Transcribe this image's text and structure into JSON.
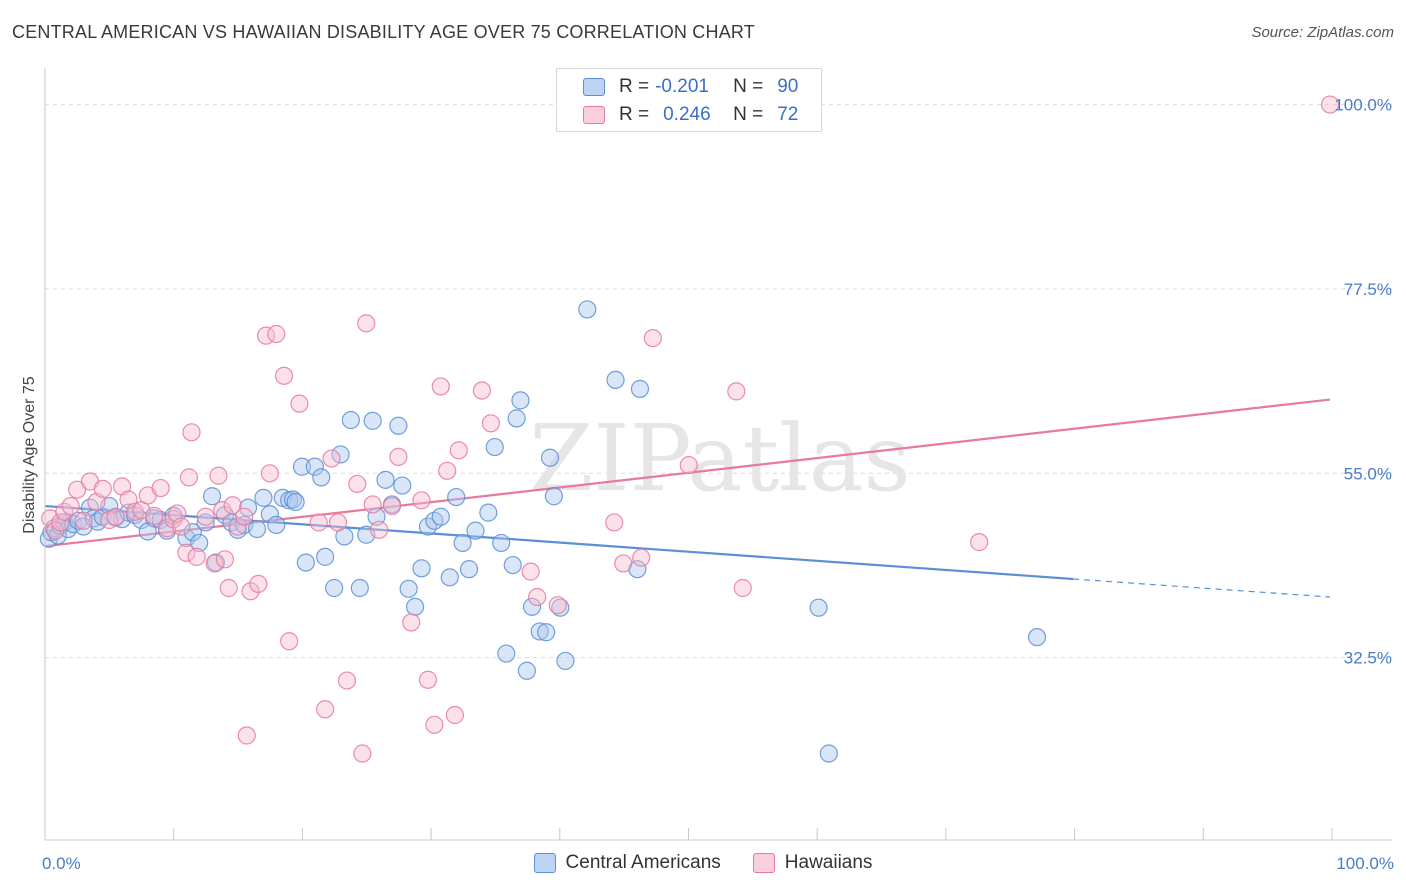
{
  "title": "CENTRAL AMERICAN VS HAWAIIAN DISABILITY AGE OVER 75 CORRELATION CHART",
  "source": "Source: ZipAtlas.com",
  "watermark": "ZIPatlas",
  "legend": {
    "rows": [
      {
        "r_label": "R =",
        "r_value": "-0.201",
        "n_label": "N =",
        "n_value": "90",
        "color": "#5b8fd6"
      },
      {
        "r_label": "R =",
        "r_value": "0.246",
        "n_label": "N =",
        "n_value": "72",
        "color": "#e879a0"
      }
    ]
  },
  "chart_data": {
    "type": "scatter",
    "title": "CENTRAL AMERICAN VS HAWAIIAN DISABILITY AGE OVER 75 CORRELATION CHART",
    "xlabel": "",
    "ylabel": "Disability Age Over 75",
    "xlim": [
      0,
      100
    ],
    "ylim": [
      10,
      103
    ],
    "x_tick_labels": [
      "0.0%",
      "100.0%"
    ],
    "y_ticks": [
      32.5,
      55.0,
      77.5,
      100.0
    ],
    "y_tick_labels": [
      "32.5%",
      "55.0%",
      "77.5%",
      "100.0%"
    ],
    "grid": true,
    "legend_position": "bottom",
    "series": [
      {
        "name": "Central Americans",
        "color": "#5b8fd6",
        "fill": "#aac8ee",
        "trend": {
          "x": [
            0,
            80
          ],
          "y": [
            51.0,
            42.1
          ]
        },
        "trend_dashed": {
          "x": [
            80,
            100
          ],
          "y": [
            42.1,
            39.9
          ]
        },
        "points": [
          [
            0.3,
            47.0
          ],
          [
            0.5,
            47.8
          ],
          [
            0.7,
            48.3
          ],
          [
            1.0,
            47.4
          ],
          [
            1.2,
            48.6
          ],
          [
            1.5,
            49.0
          ],
          [
            1.8,
            48.2
          ],
          [
            2.2,
            48.8
          ],
          [
            2.6,
            49.2
          ],
          [
            3.0,
            48.5
          ],
          [
            3.5,
            50.8
          ],
          [
            3.8,
            49.5
          ],
          [
            4.1,
            49.1
          ],
          [
            4.5,
            49.7
          ],
          [
            5.0,
            51.0
          ],
          [
            5.5,
            49.6
          ],
          [
            6.0,
            49.4
          ],
          [
            6.5,
            50.2
          ],
          [
            7.0,
            49.9
          ],
          [
            7.5,
            49.3
          ],
          [
            8.0,
            47.9
          ],
          [
            8.5,
            49.5
          ],
          [
            9.0,
            49.3
          ],
          [
            9.5,
            48.0
          ],
          [
            10.0,
            49.8
          ],
          [
            11.0,
            47.1
          ],
          [
            11.5,
            47.8
          ],
          [
            12.0,
            46.5
          ],
          [
            12.5,
            49.0
          ],
          [
            13.0,
            52.2
          ],
          [
            13.3,
            44.1
          ],
          [
            14.0,
            49.9
          ],
          [
            14.5,
            49.0
          ],
          [
            15.0,
            48.1
          ],
          [
            15.5,
            48.7
          ],
          [
            15.8,
            50.8
          ],
          [
            16.5,
            48.2
          ],
          [
            17.0,
            52.0
          ],
          [
            17.5,
            50.0
          ],
          [
            18.0,
            48.7
          ],
          [
            18.5,
            52.0
          ],
          [
            19.0,
            51.7
          ],
          [
            19.3,
            51.8
          ],
          [
            19.5,
            51.5
          ],
          [
            20.0,
            55.8
          ],
          [
            20.3,
            44.1
          ],
          [
            21.0,
            55.8
          ],
          [
            21.5,
            54.5
          ],
          [
            21.8,
            44.8
          ],
          [
            22.5,
            41.0
          ],
          [
            23.0,
            57.3
          ],
          [
            23.3,
            47.3
          ],
          [
            23.8,
            61.5
          ],
          [
            24.5,
            41.0
          ],
          [
            25.0,
            47.5
          ],
          [
            25.5,
            61.4
          ],
          [
            25.8,
            49.7
          ],
          [
            26.5,
            54.2
          ],
          [
            27.0,
            51.2
          ],
          [
            27.5,
            60.8
          ],
          [
            27.8,
            53.5
          ],
          [
            28.3,
            40.9
          ],
          [
            28.8,
            38.7
          ],
          [
            29.3,
            43.4
          ],
          [
            29.8,
            48.5
          ],
          [
            30.3,
            49.2
          ],
          [
            30.8,
            49.7
          ],
          [
            31.5,
            42.3
          ],
          [
            32.0,
            52.1
          ],
          [
            32.5,
            46.5
          ],
          [
            33.0,
            43.3
          ],
          [
            33.5,
            48.0
          ],
          [
            34.5,
            50.2
          ],
          [
            35.0,
            58.2
          ],
          [
            35.5,
            46.5
          ],
          [
            35.9,
            33.0
          ],
          [
            36.4,
            43.8
          ],
          [
            36.7,
            61.7
          ],
          [
            37.0,
            63.9
          ],
          [
            37.5,
            30.9
          ],
          [
            37.9,
            38.7
          ],
          [
            38.5,
            35.7
          ],
          [
            39.0,
            35.6
          ],
          [
            39.3,
            56.9
          ],
          [
            39.6,
            52.2
          ],
          [
            40.1,
            38.6
          ],
          [
            40.5,
            32.1
          ],
          [
            42.2,
            75.0
          ],
          [
            44.4,
            66.4
          ],
          [
            46.1,
            43.3
          ],
          [
            46.3,
            65.3
          ],
          [
            60.2,
            38.6
          ],
          [
            61.0,
            20.8
          ],
          [
            77.2,
            35.0
          ]
        ]
      },
      {
        "name": "Hawaiians",
        "color": "#e879a0",
        "fill": "#f6bcd0",
        "trend": {
          "x": [
            0,
            100
          ],
          "y": [
            46.1,
            64.0
          ]
        },
        "points": [
          [
            0.4,
            49.5
          ],
          [
            0.8,
            48.0
          ],
          [
            1.2,
            49.0
          ],
          [
            1.5,
            50.3
          ],
          [
            2.0,
            51.0
          ],
          [
            2.5,
            53.0
          ],
          [
            3.0,
            49.2
          ],
          [
            3.5,
            54.0
          ],
          [
            4.0,
            51.5
          ],
          [
            4.5,
            53.1
          ],
          [
            5.0,
            49.3
          ],
          [
            5.5,
            49.7
          ],
          [
            6.0,
            53.4
          ],
          [
            6.5,
            51.8
          ],
          [
            7.0,
            50.3
          ],
          [
            7.5,
            50.5
          ],
          [
            8.0,
            52.3
          ],
          [
            8.5,
            49.8
          ],
          [
            9.0,
            53.2
          ],
          [
            9.5,
            48.3
          ],
          [
            10.0,
            49.4
          ],
          [
            10.3,
            50.1
          ],
          [
            10.6,
            48.5
          ],
          [
            11.0,
            45.3
          ],
          [
            11.2,
            54.5
          ],
          [
            11.4,
            60.0
          ],
          [
            11.8,
            44.8
          ],
          [
            12.5,
            49.7
          ],
          [
            13.2,
            44.0
          ],
          [
            13.5,
            54.7
          ],
          [
            13.8,
            50.5
          ],
          [
            14.0,
            44.5
          ],
          [
            14.3,
            41.0
          ],
          [
            14.6,
            51.1
          ],
          [
            15.0,
            48.5
          ],
          [
            15.5,
            49.7
          ],
          [
            15.7,
            23.0
          ],
          [
            16.0,
            40.6
          ],
          [
            16.6,
            41.5
          ],
          [
            17.2,
            71.8
          ],
          [
            17.5,
            55.0
          ],
          [
            18.0,
            72.0
          ],
          [
            18.6,
            66.9
          ],
          [
            19.0,
            34.5
          ],
          [
            19.8,
            63.5
          ],
          [
            21.3,
            49.0
          ],
          [
            21.8,
            26.2
          ],
          [
            22.3,
            56.8
          ],
          [
            22.8,
            49.0
          ],
          [
            23.5,
            29.7
          ],
          [
            24.3,
            53.7
          ],
          [
            24.7,
            20.8
          ],
          [
            25.0,
            73.3
          ],
          [
            25.5,
            51.2
          ],
          [
            26.0,
            48.1
          ],
          [
            27.0,
            51.0
          ],
          [
            27.5,
            57.0
          ],
          [
            28.5,
            36.8
          ],
          [
            29.3,
            51.7
          ],
          [
            29.8,
            29.8
          ],
          [
            30.3,
            24.3
          ],
          [
            30.8,
            65.6
          ],
          [
            31.3,
            55.3
          ],
          [
            31.9,
            25.5
          ],
          [
            32.2,
            57.8
          ],
          [
            34.0,
            65.1
          ],
          [
            34.7,
            61.1
          ],
          [
            37.8,
            43.0
          ],
          [
            38.3,
            39.9
          ],
          [
            39.9,
            38.9
          ],
          [
            44.3,
            49.0
          ],
          [
            45.0,
            44.0
          ],
          [
            46.4,
            44.7
          ],
          [
            47.3,
            71.5
          ],
          [
            50.1,
            56.0
          ],
          [
            53.8,
            65.0
          ],
          [
            54.3,
            41.0
          ],
          [
            72.7,
            46.6
          ],
          [
            100.0,
            100.0
          ]
        ]
      }
    ]
  }
}
